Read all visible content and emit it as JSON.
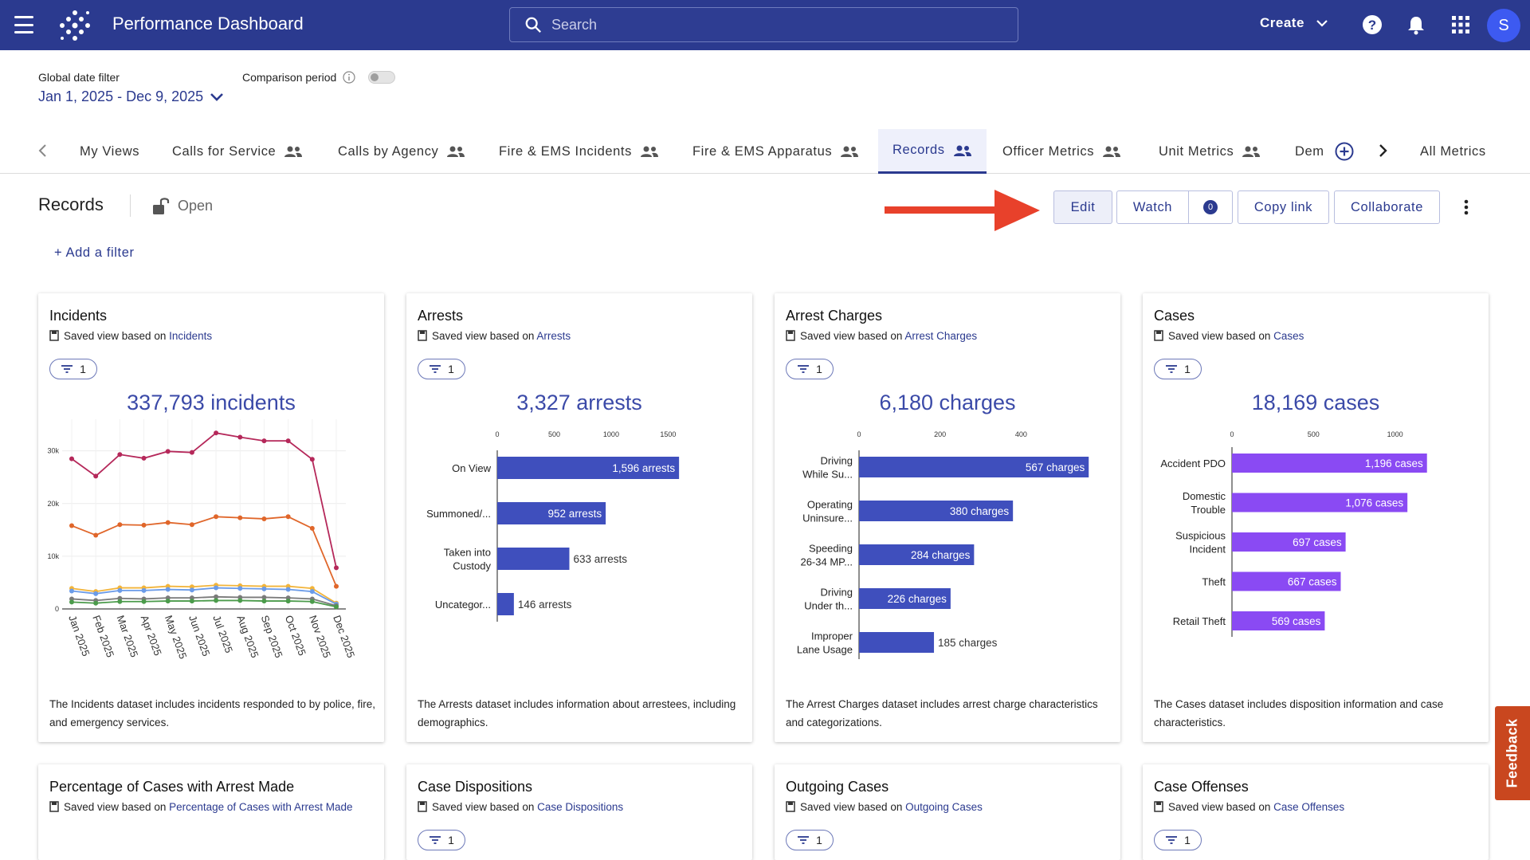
{
  "header": {
    "app_title": "Performance Dashboard",
    "search_placeholder": "Search",
    "create_label": "Create",
    "avatar_initial": "S"
  },
  "filters": {
    "global_date_label": "Global date filter",
    "date_range": "Jan 1, 2025 - Dec 9, 2025",
    "comparison_label": "Comparison period"
  },
  "tabs": [
    {
      "label": "My Views",
      "shared": false
    },
    {
      "label": "Calls for Service",
      "shared": true
    },
    {
      "label": "Calls by Agency",
      "shared": true
    },
    {
      "label": "Fire & EMS Incidents",
      "shared": true
    },
    {
      "label": "Fire & EMS Apparatus",
      "shared": true
    },
    {
      "label": "Records",
      "shared": true,
      "active": true
    },
    {
      "label": "Officer Metrics",
      "shared": true
    },
    {
      "label": "Unit Metrics",
      "shared": true
    },
    {
      "label": "Dem",
      "shared": false
    },
    {
      "label": "All Metrics",
      "shared": false
    }
  ],
  "view": {
    "title": "Records",
    "status": "Open",
    "add_filter": "+ Add a filter"
  },
  "toolbar": {
    "edit": "Edit",
    "watch": "Watch",
    "watch_count": "0",
    "copy_link": "Copy link",
    "collaborate": "Collaborate"
  },
  "cards": [
    {
      "title": "Incidents",
      "saved_prefix": "Saved view based on",
      "saved_link": "Incidents",
      "filter_count": "1",
      "metric": "337,793 incidents",
      "description": "The Incidents dataset includes incidents responded to by police, fire, and emergency services."
    },
    {
      "title": "Arrests",
      "saved_prefix": "Saved view based on",
      "saved_link": "Arrests",
      "filter_count": "1",
      "metric": "3,327 arrests",
      "description": "The Arrests dataset includes information about arrestees, including demographics."
    },
    {
      "title": "Arrest Charges",
      "saved_prefix": "Saved view based on",
      "saved_link": "Arrest Charges",
      "filter_count": "1",
      "metric": "6,180 charges",
      "description": "The Arrest Charges dataset includes arrest charge characteristics and categorizations."
    },
    {
      "title": "Cases",
      "saved_prefix": "Saved view based on",
      "saved_link": "Cases",
      "filter_count": "1",
      "metric": "18,169 cases",
      "description": "The Cases dataset includes disposition information and case characteristics."
    },
    {
      "title": "Percentage of Cases with Arrest Made",
      "saved_prefix": "Saved view based on",
      "saved_link": "Percentage of Cases with Arrest Made",
      "filter_count": "1"
    },
    {
      "title": "Case Dispositions",
      "saved_prefix": "Saved view based on",
      "saved_link": "Case Dispositions",
      "filter_count": "1"
    },
    {
      "title": "Outgoing Cases",
      "saved_prefix": "Saved view based on",
      "saved_link": "Outgoing Cases",
      "filter_count": "1"
    },
    {
      "title": "Case Offenses",
      "saved_prefix": "Saved view based on",
      "saved_link": "Case Offenses",
      "filter_count": "1"
    }
  ],
  "feedback_label": "Feedback",
  "colors": {
    "header_bg": "#2b3a8f",
    "bar_indigo": "#3f4fbd",
    "bar_violet": "#8a4af3"
  },
  "chart_data": [
    {
      "type": "line",
      "x": [
        "Jan 2025",
        "Feb 2025",
        "Mar 2025",
        "Apr 2025",
        "May 2025",
        "Jun 2025",
        "Jul 2025",
        "Aug 2025",
        "Sep 2025",
        "Oct 2025",
        "Nov 2025",
        "Dec 2025"
      ],
      "yticks": [
        "0",
        "10k",
        "20k",
        "30k"
      ],
      "ylim": [
        0,
        36000
      ],
      "series": [
        {
          "color": "#b5285a",
          "values": [
            28500,
            25200,
            29300,
            28600,
            29900,
            29700,
            33400,
            32600,
            31900,
            31900,
            28400,
            7800
          ]
        },
        {
          "color": "#e0662a",
          "values": [
            15800,
            14000,
            16000,
            15900,
            16400,
            16000,
            17500,
            17300,
            17100,
            17500,
            15300,
            4300
          ]
        },
        {
          "color": "#f2b43a",
          "values": [
            3900,
            3300,
            4000,
            4000,
            4300,
            4200,
            4500,
            4400,
            4300,
            4300,
            3900,
            1100
          ]
        },
        {
          "color": "#6b9be8",
          "values": [
            3400,
            2900,
            3500,
            3500,
            3700,
            3600,
            4000,
            3900,
            3800,
            3700,
            3300,
            900
          ]
        },
        {
          "color": "#7a7a7a",
          "values": [
            1900,
            1600,
            2000,
            1900,
            2100,
            2100,
            2300,
            2200,
            2200,
            2100,
            1900,
            600
          ]
        },
        {
          "color": "#4b9b4b",
          "values": [
            1300,
            1100,
            1400,
            1400,
            1500,
            1500,
            1600,
            1600,
            1500,
            1500,
            1400,
            400
          ]
        }
      ]
    },
    {
      "type": "bar",
      "orientation": "horizontal",
      "ticks": [
        "0",
        "500",
        "1000",
        "1500"
      ],
      "xlim": [
        0,
        1700
      ],
      "categories": [
        [
          "On View"
        ],
        [
          "Summoned/..."
        ],
        [
          "Taken into",
          "Custody"
        ],
        [
          "Uncategor..."
        ]
      ],
      "values": [
        1596,
        952,
        633,
        146
      ],
      "labels": [
        "1,596 arrests",
        "952 arrests",
        "633 arrests",
        "146 arrests"
      ]
    },
    {
      "type": "bar",
      "orientation": "horizontal",
      "ticks": [
        "0",
        "200",
        "400"
      ],
      "xlim": [
        0,
        600
      ],
      "categories": [
        [
          "Driving",
          "While Su..."
        ],
        [
          "Operating",
          "Uninsure..."
        ],
        [
          "Speeding",
          "26-34 MP..."
        ],
        [
          "Driving",
          "Under th..."
        ],
        [
          "Improper",
          "Lane Usage"
        ]
      ],
      "values": [
        567,
        380,
        284,
        226,
        185
      ],
      "labels": [
        "567 charges",
        "380 charges",
        "284 charges",
        "226 charges",
        "185 charges"
      ]
    },
    {
      "type": "bar",
      "orientation": "horizontal",
      "ticks": [
        "0",
        "500",
        "1000"
      ],
      "xlim": [
        0,
        1300
      ],
      "categories": [
        [
          "Accident PDO"
        ],
        [
          "Domestic",
          "Trouble"
        ],
        [
          "Suspicious",
          "Incident"
        ],
        [
          "Theft"
        ],
        [
          "Retail Theft"
        ]
      ],
      "values": [
        1196,
        1076,
        697,
        667,
        569
      ],
      "labels": [
        "1,196 cases",
        "1,076 cases",
        "697 cases",
        "667 cases",
        "569 cases"
      ]
    }
  ]
}
